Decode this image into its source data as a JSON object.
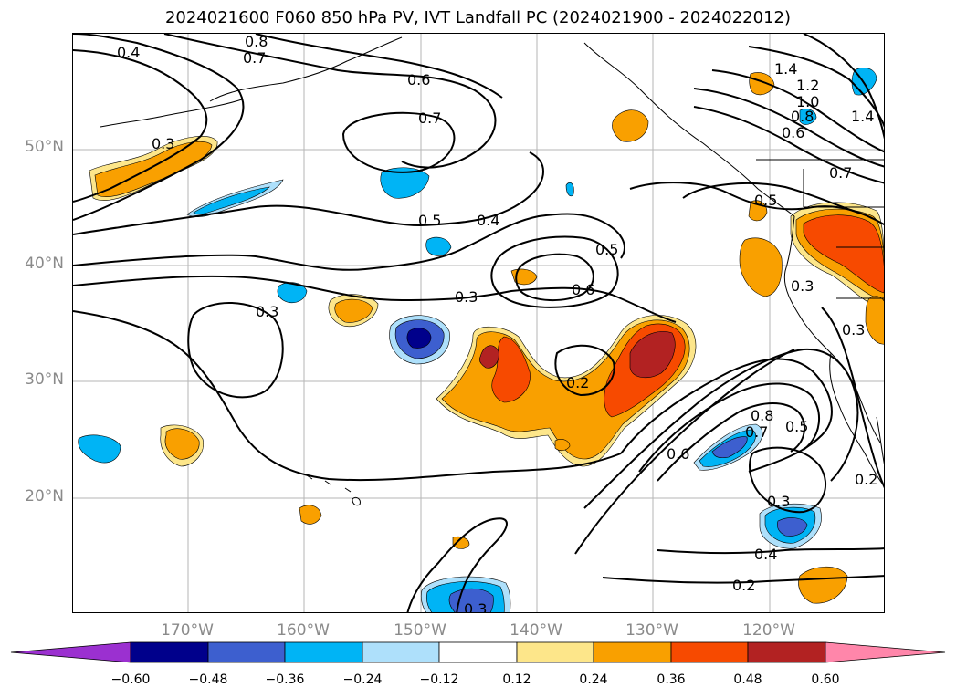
{
  "title": "2024021600 F060 850 hPa PV, IVT Landfall PC (2024021900 - 2024022012)",
  "map": {
    "lat_labels": [
      "50°N",
      "40°N",
      "30°N",
      "20°N"
    ],
    "lon_labels": [
      "170°W",
      "160°W",
      "150°W",
      "140°W",
      "130°W",
      "120°W"
    ],
    "contour_labels": [
      "0.4",
      "0.8",
      "0.7",
      "0.6",
      "0.7",
      "0.3",
      "0.5",
      "0.4",
      "0.5",
      "0.6",
      "0.3",
      "0.3",
      "0.2",
      "0.6",
      "0.7",
      "0.8",
      "0.5",
      "0.3",
      "0.4",
      "0.2",
      "0.3",
      "1.4",
      "1.2",
      "1.0",
      "0.8",
      "0.6",
      "0.7",
      "0.5",
      "0.3",
      "0.3",
      "0.2",
      "1.4"
    ]
  },
  "colorbar": {
    "ticks": [
      "−0.60",
      "−0.48",
      "−0.36",
      "−0.24",
      "−0.12",
      "0.12",
      "0.24",
      "0.36",
      "0.48",
      "0.60"
    ],
    "colors": [
      "#9b30d0",
      "#00008b",
      "#3d5fcf",
      "#00b4f5",
      "#aee0fb",
      "#ffffff",
      "#fde68a",
      "#f9a000",
      "#f74a00",
      "#b22222",
      "#ff86aa"
    ]
  }
}
